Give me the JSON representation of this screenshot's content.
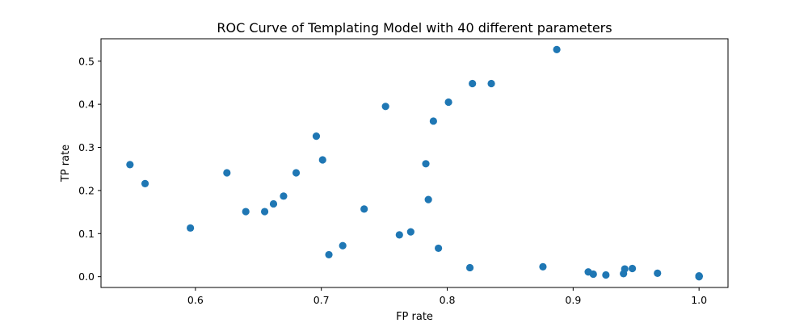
{
  "chart_data": {
    "type": "scatter",
    "title": "ROC Curve of Templating Model with 40 different parameters",
    "xlabel": "FP rate",
    "ylabel": "TP rate",
    "xlim": [
      0.525,
      1.023
    ],
    "ylim": [
      -0.025,
      0.552
    ],
    "xticks": [
      0.6,
      0.7,
      0.8,
      0.9,
      1.0
    ],
    "xtick_labels": [
      "0.6",
      "0.7",
      "0.8",
      "0.9",
      "1.0"
    ],
    "yticks": [
      0.0,
      0.1,
      0.2,
      0.3,
      0.4,
      0.5
    ],
    "ytick_labels": [
      "0.0",
      "0.1",
      "0.2",
      "0.3",
      "0.4",
      "0.5"
    ],
    "grid": false,
    "marker_color": "#1f77b4",
    "points": [
      {
        "x": 0.548,
        "y": 0.26
      },
      {
        "x": 0.56,
        "y": 0.216
      },
      {
        "x": 0.596,
        "y": 0.113
      },
      {
        "x": 0.625,
        "y": 0.241
      },
      {
        "x": 0.64,
        "y": 0.151
      },
      {
        "x": 0.655,
        "y": 0.151
      },
      {
        "x": 0.662,
        "y": 0.169
      },
      {
        "x": 0.67,
        "y": 0.187
      },
      {
        "x": 0.68,
        "y": 0.241
      },
      {
        "x": 0.696,
        "y": 0.326
      },
      {
        "x": 0.701,
        "y": 0.271
      },
      {
        "x": 0.706,
        "y": 0.051
      },
      {
        "x": 0.717,
        "y": 0.072
      },
      {
        "x": 0.734,
        "y": 0.157
      },
      {
        "x": 0.751,
        "y": 0.395
      },
      {
        "x": 0.762,
        "y": 0.097
      },
      {
        "x": 0.771,
        "y": 0.104
      },
      {
        "x": 0.783,
        "y": 0.262
      },
      {
        "x": 0.785,
        "y": 0.179
      },
      {
        "x": 0.789,
        "y": 0.361
      },
      {
        "x": 0.793,
        "y": 0.066
      },
      {
        "x": 0.801,
        "y": 0.405
      },
      {
        "x": 0.818,
        "y": 0.021
      },
      {
        "x": 0.82,
        "y": 0.448
      },
      {
        "x": 0.835,
        "y": 0.448
      },
      {
        "x": 0.876,
        "y": 0.023
      },
      {
        "x": 0.887,
        "y": 0.527
      },
      {
        "x": 0.912,
        "y": 0.011
      },
      {
        "x": 0.916,
        "y": 0.006
      },
      {
        "x": 0.926,
        "y": 0.004
      },
      {
        "x": 0.94,
        "y": 0.007
      },
      {
        "x": 0.941,
        "y": 0.018
      },
      {
        "x": 0.947,
        "y": 0.019
      },
      {
        "x": 0.967,
        "y": 0.008
      },
      {
        "x": 1.0,
        "y": 0.002
      },
      {
        "x": 1.0,
        "y": 0.001
      },
      {
        "x": 1.0,
        "y": 0.0
      },
      {
        "x": 1.0,
        "y": 0.001
      },
      {
        "x": 1.0,
        "y": 0.0
      },
      {
        "x": 1.0,
        "y": 0.001
      }
    ]
  }
}
